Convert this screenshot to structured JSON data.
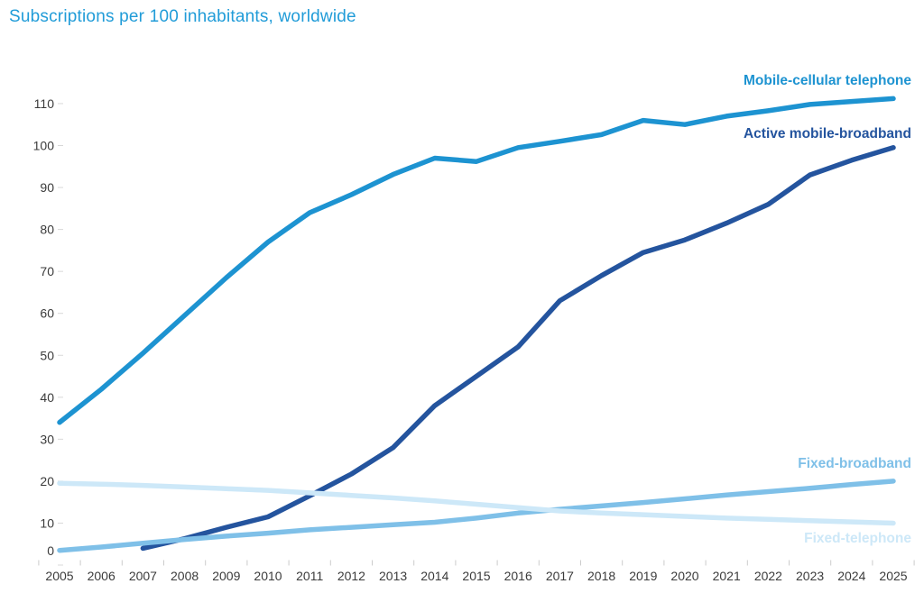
{
  "title": {
    "text": "Subscriptions per 100 inhabitants, worldwide",
    "color": "#219cd8"
  },
  "chart_data": {
    "type": "line",
    "title": "Subscriptions per 100 inhabitants, worldwide",
    "xlabel": "",
    "ylabel": "",
    "years": [
      2005,
      2006,
      2007,
      2008,
      2009,
      2010,
      2011,
      2012,
      2013,
      2014,
      2015,
      2016,
      2017,
      2018,
      2019,
      2020,
      2021,
      2022,
      2023,
      2024,
      2025
    ],
    "ylim": [
      0,
      115
    ],
    "yticks": [
      0,
      10,
      20,
      30,
      40,
      50,
      60,
      70,
      80,
      90,
      100,
      110
    ],
    "grid": false,
    "legend_position": "direct-line-labels",
    "axis_text_color": "#3b3b3b",
    "tick_color": "#cccccc",
    "series": [
      {
        "name": "Mobile-cellular telephone",
        "color": "#1d93d1",
        "start_year": 2005,
        "values": [
          34,
          41.9,
          50.5,
          59.5,
          68.5,
          77,
          84,
          88.3,
          93.1,
          97,
          96.2,
          99.5,
          101,
          102.6,
          106,
          105,
          107,
          108.3,
          109.8,
          110.5,
          111.2
        ]
      },
      {
        "name": "Active mobile-broadband",
        "color": "#24549e",
        "start_year": 2007,
        "values": [
          4,
          6.3,
          9,
          11.5,
          16.5,
          21.7,
          28,
          38,
          45,
          52,
          63,
          69,
          74.5,
          77.5,
          81.5,
          86,
          93,
          96.5,
          99.5
        ]
      },
      {
        "name": "Fixed-broadband",
        "color": "#7fc0e8",
        "start_year": 2005,
        "values": [
          3.5,
          4.3,
          5.2,
          6.1,
          6.9,
          7.6,
          8.4,
          9.0,
          9.6,
          10.2,
          11.2,
          12.4,
          13.3,
          14.1,
          14.9,
          15.8,
          16.7,
          17.5,
          18.3,
          19.2,
          20
        ]
      },
      {
        "name": "Fixed-telephone",
        "color": "#cde8f8",
        "start_year": 2005,
        "values": [
          19.5,
          19.3,
          19.0,
          18.6,
          18.2,
          17.8,
          17.2,
          16.6,
          16.0,
          15.3,
          14.5,
          13.7,
          12.9,
          12.4,
          12.0,
          11.6,
          11.2,
          10.9,
          10.6,
          10.3,
          10
        ]
      }
    ]
  }
}
